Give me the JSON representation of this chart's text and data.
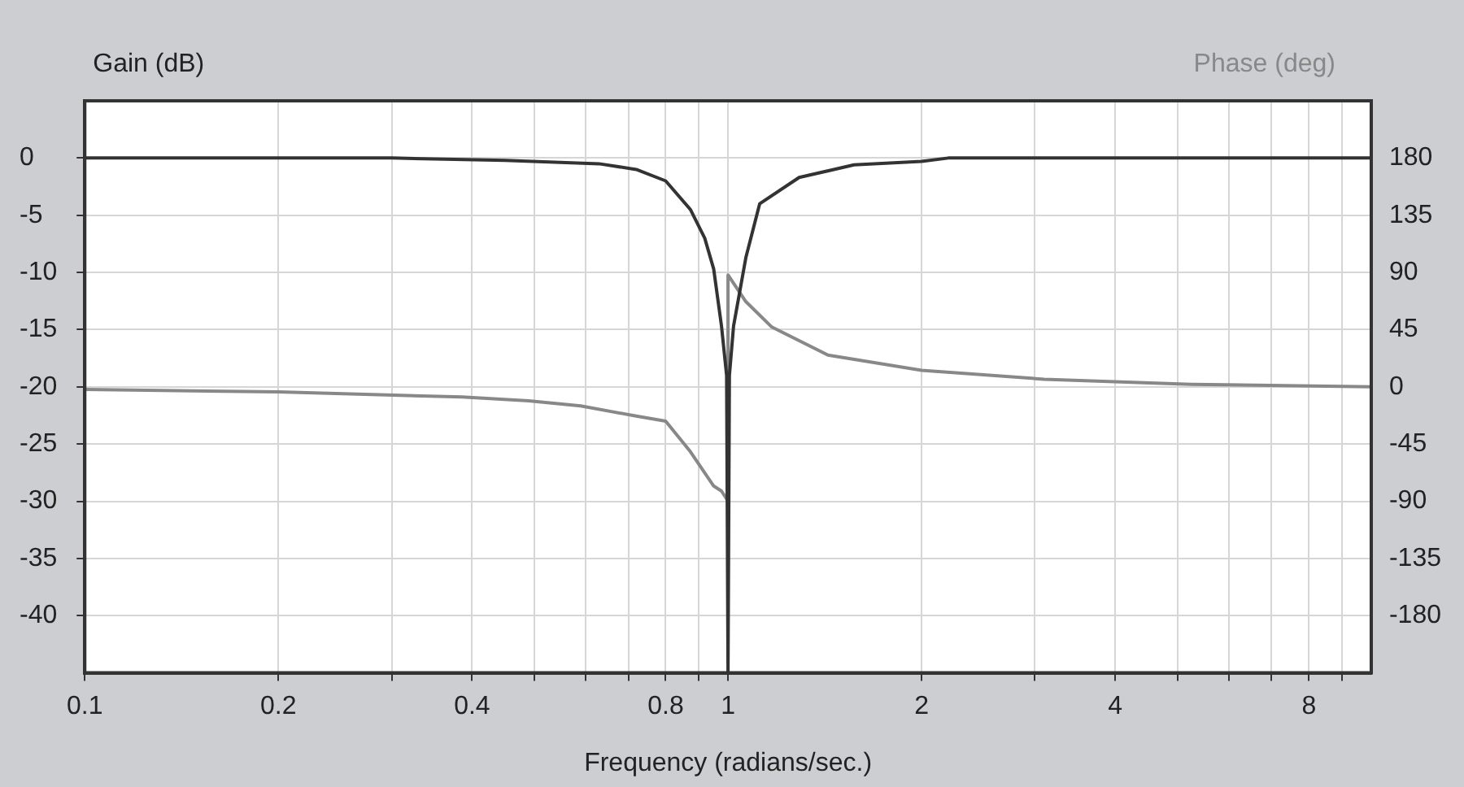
{
  "chart_data": {
    "type": "line",
    "xlabel": "Frequency (radians/sec.)",
    "ylabel": "Gain (dB)",
    "y2label": "Phase (deg)",
    "log": "x",
    "grid": true,
    "legend": false,
    "marker": "none",
    "line_style": "solid",
    "xlim": [
      0.1,
      10
    ],
    "xticks": [
      0.1,
      0.2,
      {
        "value": 0.3,
        "label": null
      },
      0.4,
      {
        "value": 0.5,
        "label": null
      },
      {
        "value": 0.6,
        "label": null
      },
      {
        "value": 0.7,
        "label": null
      },
      0.8,
      {
        "value": 0.9,
        "label": null
      },
      1,
      2,
      {
        "value": 3,
        "label": null
      },
      4,
      {
        "value": 5,
        "label": null
      },
      {
        "value": 6,
        "label": null
      },
      {
        "value": 7,
        "label": null
      },
      8,
      {
        "value": 9,
        "label": null
      }
    ],
    "ylim": [
      -45,
      5
    ],
    "yticks": [
      0,
      -5,
      -10,
      -15,
      -20,
      -25,
      -30,
      -35,
      -40
    ],
    "y2lim": [
      -225,
      225
    ],
    "y2ticks": [
      180,
      135,
      90,
      45,
      0,
      -45,
      -90,
      -135,
      -180
    ],
    "series": [
      {
        "color": "#333333",
        "x": [
          0.1,
          0.3,
          0.45,
          0.63,
          0.72,
          0.8,
          0.874,
          0.92,
          0.95,
          0.977,
          0.995,
          1.0,
          1.005,
          1.02,
          1.066,
          1.12,
          1.29,
          1.57,
          2,
          2.2,
          10
        ],
        "values": [
          0,
          0,
          -0.2,
          -0.5,
          -1,
          -2,
          -4.5,
          -7,
          -9.7,
          -14.7,
          -19,
          -45,
          -19,
          -14.7,
          -8.7,
          -4,
          -1.7,
          -0.6,
          -0.3,
          0,
          0
        ]
      },
      {
        "color": "#888888",
        "axis": "y2",
        "x": [
          0.1,
          0.2,
          0.386,
          0.49,
          0.59,
          0.72,
          0.8,
          0.874,
          0.95,
          0.977,
          1.0,
          1.0,
          1.066,
          1.17,
          1.43,
          2,
          3.1,
          5.25,
          10
        ],
        "values": [
          -2,
          -4,
          -8,
          -11,
          -15,
          -23,
          -27,
          -51,
          -78,
          -82,
          -90,
          88,
          67,
          47,
          25,
          13,
          6,
          2,
          0
        ]
      }
    ]
  }
}
